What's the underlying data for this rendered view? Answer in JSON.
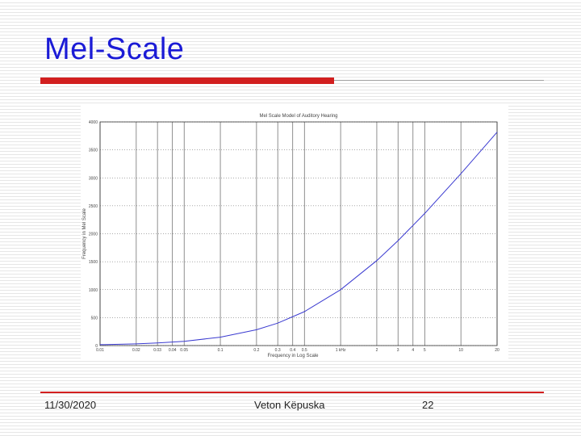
{
  "slide": {
    "title": "Mel-Scale",
    "footer_date": "11/30/2020",
    "footer_author": "Veton Këpuska",
    "footer_page": "22"
  },
  "colors": {
    "title": "#1b1bd6",
    "accent_rule": "#d21f1f",
    "curve": "#3a3ad0"
  },
  "chart_data": {
    "type": "line",
    "title": "Mel Scale Model of Auditory Hearing",
    "xlabel": "Frequency in Log Scale",
    "ylabel": "Frequency in Mel Scale",
    "x_scale": "log",
    "xlim": [
      0.01,
      20
    ],
    "ylim": [
      0,
      4000
    ],
    "x_gridlines_khz": [
      0.01,
      0.02,
      0.03,
      0.04,
      0.05,
      0.1,
      0.2,
      0.3,
      0.4,
      0.5,
      1,
      2,
      3,
      4,
      5,
      10,
      20
    ],
    "x_ticks": [
      {
        "value": 0.01,
        "label": "0.01"
      },
      {
        "value": 0.02,
        "label": "0.02"
      },
      {
        "value": 0.03,
        "label": "0.03"
      },
      {
        "value": 0.04,
        "label": "0.04"
      },
      {
        "value": 0.05,
        "label": "0.05"
      },
      {
        "value": 0.1,
        "label": "0.1"
      },
      {
        "value": 0.2,
        "label": "0.2"
      },
      {
        "value": 0.3,
        "label": "0.3"
      },
      {
        "value": 0.4,
        "label": "0.4"
      },
      {
        "value": 0.5,
        "label": "0.5"
      },
      {
        "value": 1,
        "label": "1 kHz"
      },
      {
        "value": 2,
        "label": "2"
      },
      {
        "value": 3,
        "label": "3"
      },
      {
        "value": 4,
        "label": "4"
      },
      {
        "value": 5,
        "label": "5"
      },
      {
        "value": 10,
        "label": "10"
      },
      {
        "value": 20,
        "label": "20"
      }
    ],
    "y_ticks": [
      0,
      500,
      1000,
      1500,
      2000,
      2500,
      3000,
      3500,
      4000
    ],
    "y_grid_style": "dotted",
    "x_grid_style": "solid",
    "series": [
      {
        "x": [
          0.01,
          0.02,
          0.03,
          0.05,
          0.1,
          0.2,
          0.3,
          0.5,
          1,
          2,
          3,
          5,
          10,
          20
        ],
        "y": [
          16,
          31,
          46,
          75,
          150,
          283,
          402,
          607,
          1000,
          1521,
          1876,
          2363,
          3073,
          3817
        ]
      }
    ]
  }
}
